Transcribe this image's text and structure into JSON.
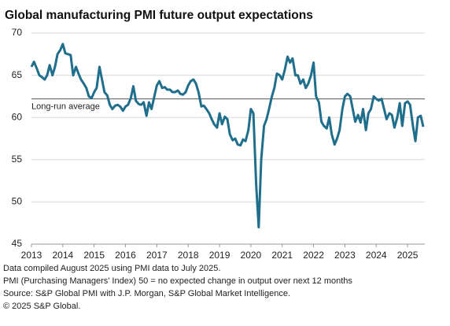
{
  "chart_data": {
    "type": "line",
    "title": "Global manufacturing PMI future output expectations",
    "x": [
      2013,
      2013.08,
      2013.17,
      2013.25,
      2013.33,
      2013.42,
      2013.5,
      2013.58,
      2013.67,
      2013.75,
      2013.83,
      2013.92,
      2014,
      2014.08,
      2014.17,
      2014.25,
      2014.33,
      2014.42,
      2014.5,
      2014.58,
      2014.67,
      2014.75,
      2014.83,
      2014.92,
      2015,
      2015.08,
      2015.17,
      2015.25,
      2015.33,
      2015.42,
      2015.5,
      2015.58,
      2015.67,
      2015.75,
      2015.83,
      2015.92,
      2016,
      2016.08,
      2016.17,
      2016.25,
      2016.33,
      2016.42,
      2016.5,
      2016.58,
      2016.67,
      2016.75,
      2016.83,
      2016.92,
      2017,
      2017.08,
      2017.17,
      2017.25,
      2017.33,
      2017.42,
      2017.5,
      2017.58,
      2017.67,
      2017.75,
      2017.83,
      2017.92,
      2018,
      2018.08,
      2018.17,
      2018.25,
      2018.33,
      2018.42,
      2018.5,
      2018.58,
      2018.67,
      2018.75,
      2018.83,
      2018.92,
      2019,
      2019.08,
      2019.17,
      2019.25,
      2019.33,
      2019.42,
      2019.5,
      2019.58,
      2019.67,
      2019.75,
      2019.83,
      2019.92,
      2020,
      2020.08,
      2020.17,
      2020.25,
      2020.33,
      2020.42,
      2020.5,
      2020.58,
      2020.67,
      2020.75,
      2020.83,
      2020.92,
      2021,
      2021.08,
      2021.17,
      2021.25,
      2021.33,
      2021.42,
      2021.5,
      2021.58,
      2021.67,
      2021.75,
      2021.83,
      2021.92,
      2022,
      2022.08,
      2022.17,
      2022.25,
      2022.33,
      2022.42,
      2022.5,
      2022.58,
      2022.67,
      2022.75,
      2022.83,
      2022.92,
      2023,
      2023.08,
      2023.17,
      2023.25,
      2023.33,
      2023.42,
      2023.5,
      2023.58,
      2023.67,
      2023.75,
      2023.83,
      2023.92,
      2024,
      2024.08,
      2024.17,
      2024.25,
      2024.33,
      2024.42,
      2024.5,
      2024.58,
      2024.67,
      2024.75,
      2024.83,
      2024.92,
      2025,
      2025.08,
      2025.17,
      2025.25,
      2025.33,
      2025.42,
      2025.5
    ],
    "values": [
      66.0,
      66.6,
      65.8,
      65.0,
      64.8,
      64.5,
      65.0,
      66.2,
      65.0,
      66.0,
      67.5,
      68.0,
      68.7,
      67.6,
      67.5,
      67.4,
      65.0,
      66.0,
      65.2,
      64.5,
      64.0,
      63.5,
      62.5,
      62.3,
      63.0,
      63.5,
      66.0,
      64.5,
      63.0,
      62.6,
      61.5,
      61.0,
      61.4,
      61.5,
      61.3,
      60.8,
      61.3,
      61.5,
      62.3,
      63.7,
      62.0,
      61.6,
      61.5,
      61.8,
      60.2,
      61.8,
      61.0,
      62.5,
      63.8,
      64.3,
      63.5,
      63.6,
      63.3,
      63.3,
      63.0,
      63.0,
      63.2,
      62.8,
      62.7,
      63.0,
      63.8,
      64.3,
      64.5,
      64.0,
      63.0,
      61.3,
      61.4,
      61.0,
      60.5,
      59.8,
      59.2,
      58.8,
      60.5,
      59.2,
      60.1,
      59.8,
      58.0,
      57.3,
      57.5,
      56.8,
      56.7,
      57.4,
      57.2,
      58.5,
      61.0,
      60.5,
      52.0,
      47.0,
      55.0,
      59.0,
      59.8,
      61.0,
      62.5,
      63.5,
      65.2,
      65.0,
      64.5,
      65.6,
      67.2,
      66.5,
      67.0,
      65.0,
      65.0,
      64.0,
      64.5,
      63.5,
      64.0,
      65.0,
      66.5,
      62.5,
      61.8,
      59.5,
      59.0,
      58.7,
      60.0,
      58.0,
      56.8,
      57.5,
      58.5,
      61.0,
      62.5,
      62.8,
      62.5,
      61.0,
      59.5,
      60.3,
      59.4,
      61.0,
      58.5,
      60.5,
      61.0,
      62.5,
      62.2,
      62.0,
      62.2,
      61.0,
      59.8,
      60.5,
      60.3,
      58.8,
      60.0,
      61.7,
      59.0,
      61.7,
      61.9,
      61.5,
      59.0,
      57.2,
      60.0,
      60.2,
      58.9
    ],
    "color": "#1f6e8c",
    "xlim": [
      2013,
      2025.55
    ],
    "xticks": [
      2013,
      2014,
      2015,
      2016,
      2017,
      2018,
      2019,
      2020,
      2021,
      2022,
      2023,
      2024,
      2025
    ],
    "ylim": [
      45,
      70
    ],
    "yticks": [
      45,
      50,
      55,
      60,
      65,
      70
    ],
    "grid": true,
    "reference_line": {
      "value": 62.2,
      "label": "Long-run average"
    },
    "notes": [
      "Data compiled August 2025 using PMI data to July 2025.",
      "PMI (Purchasing Managers' Index) 50 = no expected change in output over next 12 months",
      "Source: S&P Global  PMI with J.P. Morgan, S&P Global Market Intelligence.",
      "© 2025 S&P Global."
    ]
  }
}
